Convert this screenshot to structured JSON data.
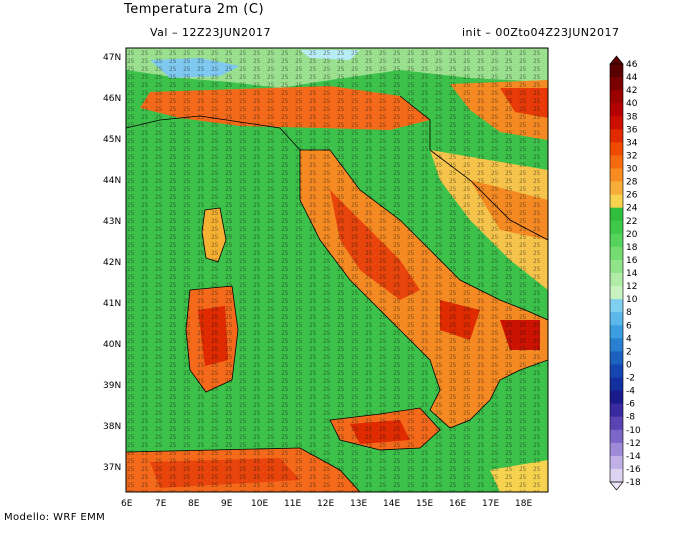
{
  "header": {
    "title": "Temperatura 2m (C)",
    "valid": "Val –  12Z23JUN2017",
    "init": "init – 00Zto04Z23JUN2017"
  },
  "footer": {
    "model": "Modello: WRF EMM"
  },
  "map": {
    "lat_labels": [
      "47N",
      "46N",
      "45N",
      "44N",
      "43N",
      "42N",
      "41N",
      "40N",
      "39N",
      "38N",
      "37N"
    ],
    "lon_labels": [
      "6E",
      "7E",
      "8E",
      "9E",
      "10E",
      "11E",
      "12E",
      "13E",
      "14E",
      "15E",
      "16E",
      "17E",
      "18E"
    ],
    "region": "Italy",
    "field": "2m temperature (C)"
  },
  "colorbar": {
    "labels": [
      "46",
      "44",
      "42",
      "40",
      "38",
      "36",
      "34",
      "32",
      "30",
      "28",
      "26",
      "24",
      "22",
      "20",
      "18",
      "16",
      "14",
      "12",
      "10",
      "8",
      "6",
      "4",
      "2",
      "0",
      "-2",
      "-4",
      "-6",
      "-8",
      "-10",
      "-12",
      "-14",
      "-16",
      "-18"
    ],
    "colors": [
      "#5a0000",
      "#7a0000",
      "#9a0000",
      "#b40000",
      "#cc0f00",
      "#e02a00",
      "#f04a00",
      "#f66a10",
      "#f88c20",
      "#f7ad3a",
      "#f6d24e",
      "#2fbf3c",
      "#3ec94a",
      "#56d35c",
      "#74dc70",
      "#92e48a",
      "#b0eca6",
      "#c8f2bf",
      "#7fd0f0",
      "#5cb8ea",
      "#3a9ee0",
      "#2a80d0",
      "#1c60c0",
      "#1545b0",
      "#1230a0",
      "#1a1a8c",
      "#3a2aa0",
      "#5a44b4",
      "#7c66c8",
      "#9e8ad8",
      "#c0b0e6",
      "#ddd4f2"
    ],
    "top_arrow_color": "#5a0000",
    "bottom_arrow_color": "#ece6f8"
  }
}
